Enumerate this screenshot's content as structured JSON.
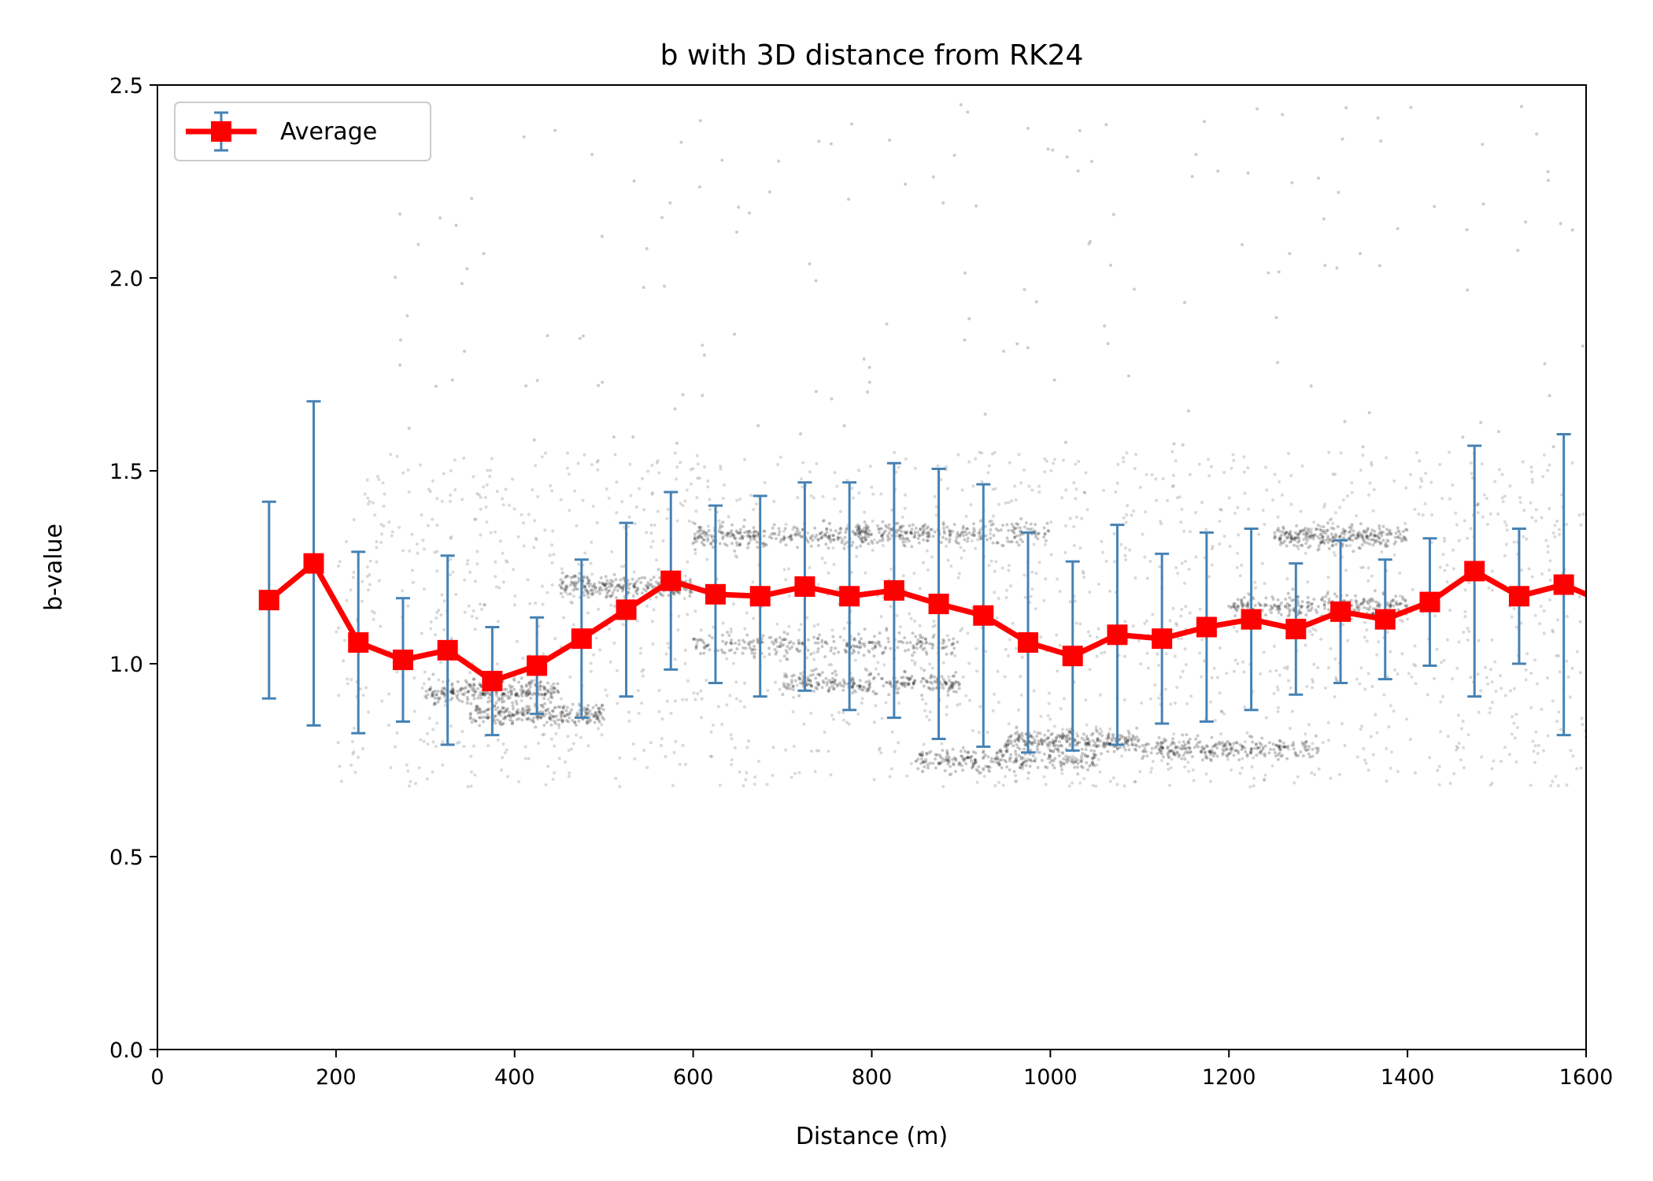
{
  "chart_data": {
    "type": "line",
    "title": "b with 3D distance from RK24",
    "xlabel": "Distance (m)",
    "ylabel": "b-value",
    "xlim": [
      0,
      1600
    ],
    "ylim": [
      0,
      2.5
    ],
    "xticks": [
      0,
      200,
      400,
      600,
      800,
      1000,
      1200,
      1400,
      1600
    ],
    "yticks": [
      0.0,
      0.5,
      1.0,
      1.5,
      2.0,
      2.5
    ],
    "xtick_labels": [
      "0",
      "200",
      "400",
      "600",
      "800",
      "1000",
      "1200",
      "1400",
      "1600"
    ],
    "ytick_labels": [
      "0.0",
      "0.5",
      "1.0",
      "1.5",
      "2.0",
      "2.5"
    ],
    "grid": false,
    "legend_position": "top-left",
    "series": [
      {
        "name": "Average",
        "color": "#ff0000",
        "errorbar_color": "#4682b4",
        "marker": "square",
        "x": [
          125,
          175,
          225,
          275,
          325,
          375,
          425,
          475,
          525,
          575,
          625,
          675,
          725,
          775,
          825,
          875,
          925,
          975,
          1025,
          1075,
          1125,
          1175,
          1225,
          1275,
          1325,
          1375,
          1425,
          1475,
          1525,
          1575,
          1600
        ],
        "y": [
          1.165,
          1.26,
          1.055,
          1.01,
          1.035,
          0.955,
          0.995,
          1.065,
          1.14,
          1.215,
          1.18,
          1.175,
          1.2,
          1.175,
          1.19,
          1.155,
          1.125,
          1.055,
          1.02,
          1.075,
          1.065,
          1.095,
          1.115,
          1.09,
          1.135,
          1.115,
          1.16,
          1.24,
          1.175,
          1.205,
          1.18
        ],
        "error": [
          0.255,
          0.42,
          0.235,
          0.16,
          0.245,
          0.14,
          0.125,
          0.205,
          0.225,
          0.23,
          0.23,
          0.26,
          0.27,
          0.295,
          0.33,
          0.35,
          0.34,
          0.285,
          0.245,
          0.285,
          0.22,
          0.245,
          0.235,
          0.17,
          0.185,
          0.155,
          0.165,
          0.325,
          0.175,
          0.39,
          null
        ]
      }
    ],
    "scatter_background": {
      "description_color": "#000000",
      "opacity": 0.15,
      "bands": [
        {
          "x": [
            350,
            500
          ],
          "y": 0.87
        },
        {
          "x": [
            600,
            800
          ],
          "y": 1.33
        },
        {
          "x": [
            780,
            1000
          ],
          "y": 1.34
        },
        {
          "x": [
            850,
            1050
          ],
          "y": 0.75
        },
        {
          "x": [
            950,
            1100
          ],
          "y": 0.8
        },
        {
          "x": [
            600,
            900
          ],
          "y": 1.05
        },
        {
          "x": [
            700,
            900
          ],
          "y": 0.95
        },
        {
          "x": [
            1200,
            1400
          ],
          "y": 1.15
        },
        {
          "x": [
            1250,
            1400
          ],
          "y": 1.33
        },
        {
          "x": [
            1100,
            1300
          ],
          "y": 0.78
        },
        {
          "x": [
            300,
            450
          ],
          "y": 0.93
        },
        {
          "x": [
            450,
            600
          ],
          "y": 1.2
        }
      ],
      "spread_x": [
        200,
        1600
      ],
      "spread_y": [
        0.68,
        1.55
      ]
    }
  }
}
